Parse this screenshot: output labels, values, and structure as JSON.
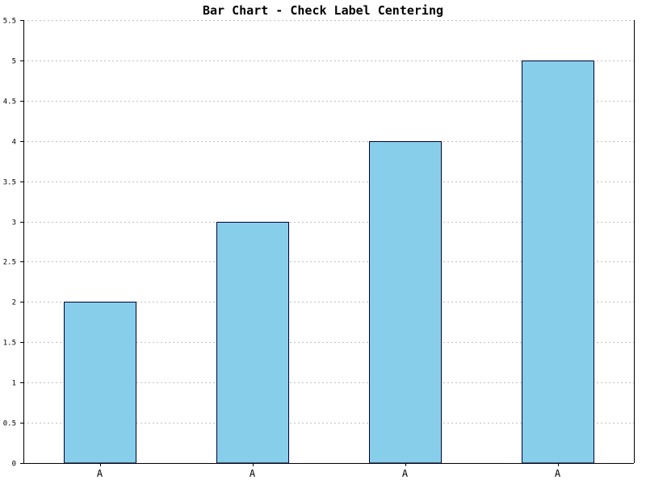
{
  "chart_data": {
    "type": "bar",
    "title": "Bar Chart - Check Label Centering",
    "xlabel": "",
    "ylabel": "",
    "categories": [
      "A",
      "A",
      "A",
      "A"
    ],
    "values": [
      2,
      3,
      4,
      5
    ],
    "ylim": [
      0,
      5.5
    ],
    "yticks": [
      "0",
      "0.5",
      "1",
      "1.5",
      "2",
      "2.5",
      "3",
      "3.5",
      "4",
      "4.5",
      "5",
      "5.5"
    ],
    "grid": true,
    "legend": "none",
    "bar_color": "#87CEEB",
    "bar_edge_color": "#000033",
    "grid_color": "#c0c0c0"
  }
}
